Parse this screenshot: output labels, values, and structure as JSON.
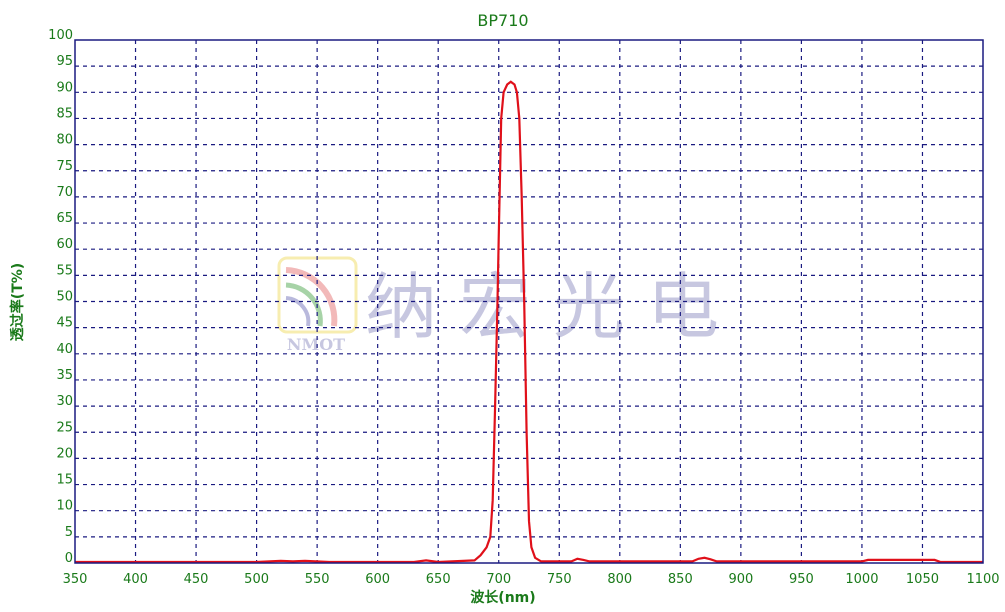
{
  "chart_data": {
    "type": "line",
    "title": "BP710",
    "xlabel": "波长(nm)",
    "ylabel": "透过率(T%)",
    "xlim": [
      350,
      1100
    ],
    "ylim": [
      0,
      100
    ],
    "xticks": [
      350,
      400,
      450,
      500,
      550,
      600,
      650,
      700,
      750,
      800,
      850,
      900,
      950,
      1000,
      1050,
      1100
    ],
    "yticks": [
      0,
      5,
      10,
      15,
      20,
      25,
      30,
      35,
      40,
      45,
      50,
      55,
      60,
      65,
      70,
      75,
      80,
      85,
      90,
      95,
      100
    ],
    "grid": true,
    "colors": {
      "line": "#e0101a",
      "grid": "#1a1a80",
      "text": "#1a7a1a",
      "watermark": "#9a9ac8"
    },
    "watermark": {
      "logo_text": "NMOT",
      "text": "纳宏光电"
    },
    "series": [
      {
        "x": [
          350,
          500,
          520,
          530,
          540,
          560,
          630,
          640,
          650,
          680,
          685,
          690,
          693,
          695,
          697,
          699,
          700,
          702,
          704,
          707,
          710,
          713,
          715,
          717,
          719,
          721,
          723,
          725,
          727,
          730,
          735,
          760,
          765,
          770,
          775,
          860,
          865,
          870,
          875,
          880,
          1000,
          1005,
          1060,
          1065,
          1100
        ],
        "y": [
          0.2,
          0.2,
          0.4,
          0.3,
          0.4,
          0.2,
          0.2,
          0.5,
          0.2,
          0.5,
          1.5,
          3,
          5,
          12,
          30,
          50,
          62,
          85,
          90,
          91.5,
          92,
          91.5,
          90,
          85,
          70,
          50,
          25,
          8,
          3,
          1,
          0.3,
          0.3,
          0.8,
          0.6,
          0.3,
          0.3,
          0.8,
          1.0,
          0.7,
          0.3,
          0.3,
          0.6,
          0.6,
          0.2,
          0.2
        ]
      }
    ]
  }
}
